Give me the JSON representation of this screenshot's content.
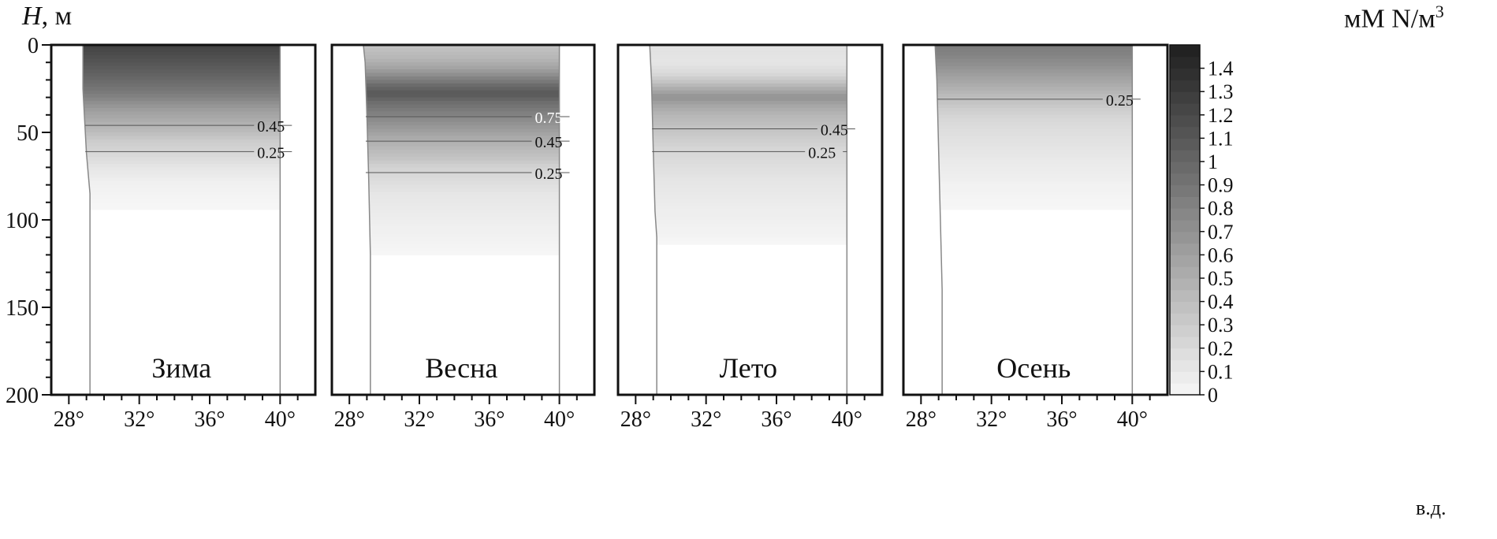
{
  "figure": {
    "y_axis_symbol": "H",
    "y_axis_unit": ", м",
    "colorbar_unit": "мМ N/м",
    "colorbar_unit_sup": "3",
    "x_axis_unit": "в.д."
  },
  "chart_data": [
    {
      "type": "heatmap",
      "title": "Зима",
      "x_ticks": [
        "28°",
        "32°",
        "36°",
        "40°"
      ],
      "y_ticks": [
        "0",
        "50",
        "100",
        "150",
        "200"
      ],
      "xlim": [
        27,
        42
      ],
      "ylim": [
        200,
        0
      ],
      "grid": false,
      "section_lon_range": [
        28.8,
        40
      ],
      "coast_profile": [
        [
          28.8,
          0
        ],
        [
          28.8,
          25
        ],
        [
          29.0,
          62
        ],
        [
          29.2,
          85
        ],
        [
          29.2,
          200
        ]
      ],
      "surface_value": 1.25,
      "profile": [
        [
          0,
          1.25
        ],
        [
          8,
          1.15
        ],
        [
          15,
          1.05
        ],
        [
          22,
          0.95
        ],
        [
          28,
          0.85
        ],
        [
          33,
          0.72
        ],
        [
          38,
          0.6
        ],
        [
          44,
          0.5
        ],
        [
          49,
          0.42
        ],
        [
          55,
          0.3
        ],
        [
          62,
          0.22
        ],
        [
          70,
          0.12
        ],
        [
          79,
          0.05
        ],
        [
          86,
          0.02
        ],
        [
          95,
          0
        ]
      ],
      "contours": [
        {
          "label": "0.45",
          "depth": 46,
          "label_lon": 38.7
        },
        {
          "label": "0.25",
          "depth": 61,
          "label_lon": 38.7
        }
      ]
    },
    {
      "type": "heatmap",
      "title": "Весна",
      "x_ticks": [
        "28°",
        "32°",
        "36°",
        "40°"
      ],
      "y_ticks": [],
      "xlim": [
        27,
        42
      ],
      "ylim": [
        200,
        0
      ],
      "grid": false,
      "section_lon_range": [
        28.8,
        40
      ],
      "coast_profile": [
        [
          28.8,
          0
        ],
        [
          28.9,
          10
        ],
        [
          29.0,
          40
        ],
        [
          29.1,
          75
        ],
        [
          29.2,
          120
        ],
        [
          29.2,
          200
        ]
      ],
      "surface_value": 0.35,
      "profile": [
        [
          0,
          0.35
        ],
        [
          8,
          0.45
        ],
        [
          14,
          0.6
        ],
        [
          19,
          0.8
        ],
        [
          24,
          1.0
        ],
        [
          28,
          1.1
        ],
        [
          33,
          0.95
        ],
        [
          40,
          0.8
        ],
        [
          46,
          0.68
        ],
        [
          52,
          0.55
        ],
        [
          58,
          0.45
        ],
        [
          65,
          0.35
        ],
        [
          70,
          0.25
        ],
        [
          78,
          0.18
        ],
        [
          85,
          0.12
        ],
        [
          95,
          0.08
        ],
        [
          105,
          0.05
        ],
        [
          113,
          0.03
        ],
        [
          120,
          0
        ]
      ],
      "contours": [
        {
          "label": "0.75",
          "depth": 41,
          "label_lon": 38.6
        },
        {
          "label": "0.45",
          "depth": 55,
          "label_lon": 38.6
        },
        {
          "label": "0.25",
          "depth": 73,
          "label_lon": 38.6
        }
      ]
    },
    {
      "type": "heatmap",
      "title": "Лето",
      "x_ticks": [
        "28°",
        "32°",
        "36°",
        "40°"
      ],
      "y_ticks": [],
      "xlim": [
        27,
        42
      ],
      "ylim": [
        200,
        0
      ],
      "grid": false,
      "section_lon_range": [
        28.8,
        40
      ],
      "coast_profile": [
        [
          28.8,
          0
        ],
        [
          28.9,
          20
        ],
        [
          29.0,
          60
        ],
        [
          29.1,
          95
        ],
        [
          29.2,
          110
        ],
        [
          29.2,
          200
        ]
      ],
      "surface_value": 0.15,
      "profile": [
        [
          0,
          0.15
        ],
        [
          10,
          0.12
        ],
        [
          16,
          0.2
        ],
        [
          21,
          0.35
        ],
        [
          26,
          0.55
        ],
        [
          30,
          0.7
        ],
        [
          35,
          0.55
        ],
        [
          40,
          0.45
        ],
        [
          46,
          0.38
        ],
        [
          53,
          0.3
        ],
        [
          60,
          0.22
        ],
        [
          68,
          0.18
        ],
        [
          78,
          0.12
        ],
        [
          90,
          0.08
        ],
        [
          100,
          0.05
        ],
        [
          108,
          0.03
        ],
        [
          115,
          0
        ]
      ],
      "contours": [
        {
          "label": "0.45",
          "depth": 48,
          "label_lon": 38.5
        },
        {
          "label": "0.25",
          "depth": 61,
          "label_lon": 37.8
        }
      ]
    },
    {
      "type": "heatmap",
      "title": "Осень",
      "x_ticks": [
        "28°",
        "32°",
        "36°",
        "40°"
      ],
      "y_ticks": [],
      "xlim": [
        27,
        42
      ],
      "ylim": [
        200,
        0
      ],
      "grid": false,
      "section_lon_range": [
        28.8,
        40
      ],
      "coast_profile": [
        [
          28.8,
          0
        ],
        [
          28.9,
          20
        ],
        [
          29.0,
          60
        ],
        [
          29.1,
          100
        ],
        [
          29.2,
          140
        ],
        [
          29.2,
          200
        ]
      ],
      "surface_value": 0.85,
      "profile": [
        [
          0,
          0.85
        ],
        [
          6,
          0.8
        ],
        [
          12,
          0.7
        ],
        [
          18,
          0.6
        ],
        [
          24,
          0.5
        ],
        [
          30,
          0.4
        ],
        [
          36,
          0.3
        ],
        [
          42,
          0.22
        ],
        [
          50,
          0.17
        ],
        [
          60,
          0.12
        ],
        [
          70,
          0.08
        ],
        [
          80,
          0.04
        ],
        [
          88,
          0.02
        ],
        [
          95,
          0
        ]
      ],
      "contours": [
        {
          "label": "0.25",
          "depth": 31,
          "label_lon": 38.5
        }
      ]
    }
  ],
  "colorbar": {
    "min": 0,
    "max": 1.5,
    "step": 0.05,
    "tick_labels": [
      "0",
      "0.1",
      "0.2",
      "0.3",
      "0.4",
      "0.5",
      "0.6",
      "0.7",
      "0.8",
      "0.9",
      "1",
      "1.1",
      "1.2",
      "1.3",
      "1.4"
    ],
    "color_low": "#f7f7f7",
    "color_high": "#1e1e1e"
  }
}
